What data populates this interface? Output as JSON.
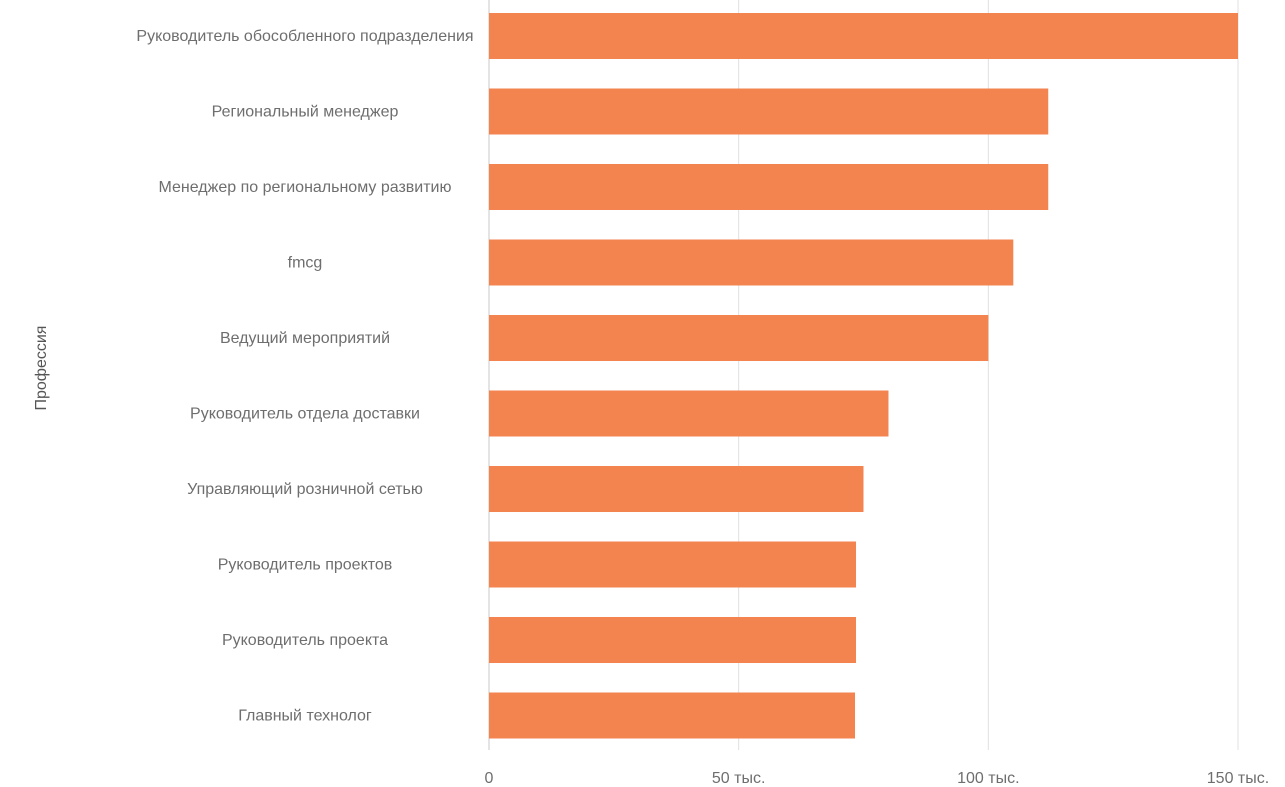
{
  "chart_data": {
    "type": "bar",
    "orientation": "horizontal",
    "ylabel": "Профессия",
    "xlabel": "",
    "bar_color": "#f3834f",
    "grid_color": "#e0e0e0",
    "axis_color": "#c8c8c8",
    "xlim": [
      0,
      150000
    ],
    "x_ticks": [
      {
        "value": 0,
        "label": "0"
      },
      {
        "value": 50000,
        "label": "50 тыс."
      },
      {
        "value": 100000,
        "label": "100 тыс."
      },
      {
        "value": 150000,
        "label": "150 тыс."
      }
    ],
    "categories": [
      "Руководитель обособленного подразделения",
      "Региональный менеджер",
      "Менеджер по региональному развитию",
      "fmcg",
      "Ведущий мероприятий",
      "Руководитель отдела доставки",
      "Управляющий розничной сетью",
      "Руководитель проектов",
      "Руководитель проекта",
      "Главный технолог"
    ],
    "values": [
      150000,
      112000,
      112000,
      105000,
      100000,
      80000,
      75000,
      73500,
      73500,
      73300
    ],
    "grid": true
  }
}
